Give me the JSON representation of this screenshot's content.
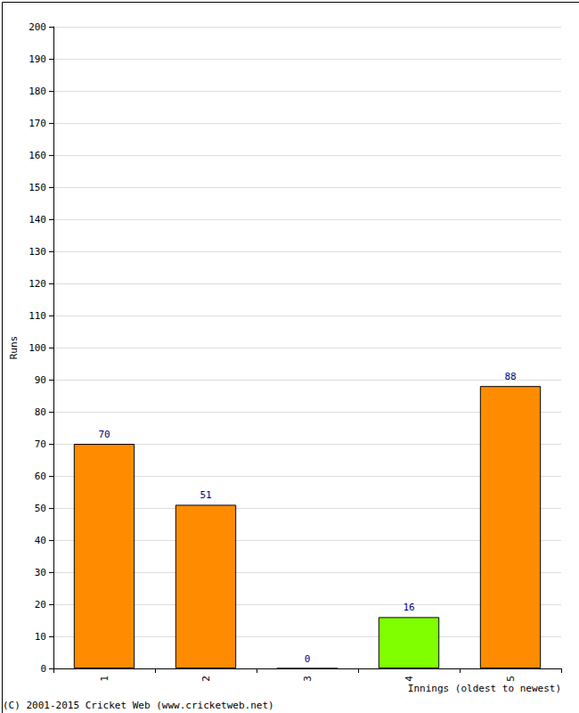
{
  "chart_data": {
    "type": "bar",
    "categories": [
      "1",
      "2",
      "3",
      "4",
      "5"
    ],
    "values": [
      70,
      51,
      0,
      16,
      88
    ],
    "colors": [
      "#ff8c00",
      "#ff8c00",
      "#ff8c00",
      "#80ff00",
      "#ff8c00"
    ],
    "x_label": "Innings (oldest to newest)",
    "y_label": "Runs",
    "annotations": [
      "(C) 2001-2015 Cricket Web (www.cricketweb.net)"
    ],
    "ylim": [
      0,
      200
    ],
    "yticks": [
      0,
      10,
      20,
      30,
      40,
      50,
      60,
      70,
      80,
      90,
      100,
      110,
      120,
      130,
      140,
      150,
      160,
      170,
      180,
      190,
      200
    ],
    "grid": true,
    "data_labels": true
  }
}
